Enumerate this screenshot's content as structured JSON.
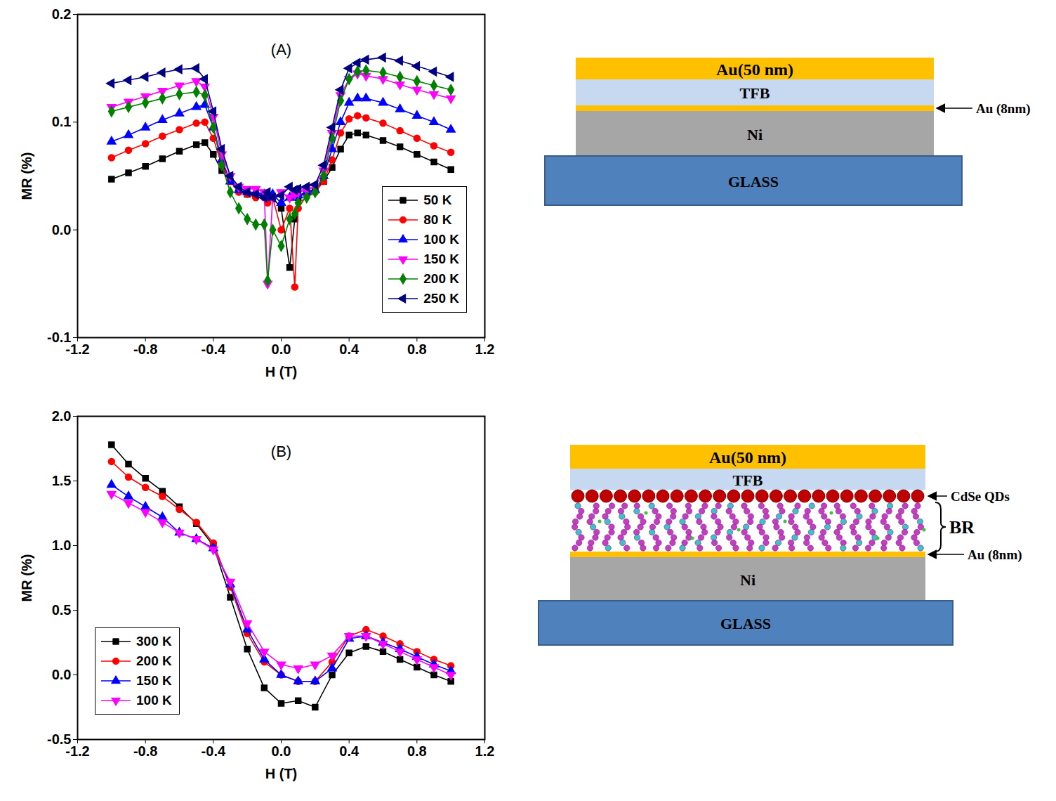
{
  "chart_data": [
    {
      "type": "line",
      "title": "(A)",
      "x_label": "H (T)",
      "y_label": "MR (%)",
      "xlim": [
        -1.2,
        1.2
      ],
      "xticks": [
        -1.2,
        -0.8,
        -0.4,
        {
          "value": 0,
          "label": "0.0"
        },
        0.4,
        0.8,
        1.2
      ],
      "ylim": [
        -0.1,
        0.2
      ],
      "yticks": [
        -0.1,
        {
          "value": 0,
          "label": "0.0"
        },
        0.1,
        0.2
      ],
      "grid": false,
      "legend": "lower right",
      "x": [
        -1,
        -0.9,
        -0.8,
        -0.7,
        -0.6,
        -0.5,
        -0.45,
        -0.4,
        -0.35,
        -0.3,
        -0.25,
        -0.2,
        -0.15,
        -0.1,
        -0.08,
        -0.05,
        0,
        0.05,
        0.08,
        0.1,
        0.15,
        0.2,
        0.25,
        0.3,
        0.35,
        0.4,
        0.45,
        0.5,
        0.6,
        0.7,
        0.8,
        0.9,
        1
      ],
      "series": [
        {
          "name": "50 K",
          "color": "#000000",
          "marker": "square",
          "values": [
            0.047,
            0.053,
            0.059,
            0.066,
            0.073,
            0.079,
            0.081,
            0.07,
            0.055,
            0.045,
            0.038,
            0.033,
            0.032,
            0.033,
            0.03,
            0.03,
            0.02,
            -0.035,
            0.01,
            0.03,
            0.035,
            0.038,
            0.045,
            0.058,
            0.075,
            0.088,
            0.09,
            0.088,
            0.083,
            0.077,
            0.07,
            0.063,
            0.056
          ]
        },
        {
          "name": "80 K",
          "color": "#ff0000",
          "marker": "circle",
          "values": [
            0.067,
            0.074,
            0.08,
            0.087,
            0.093,
            0.099,
            0.1,
            0.085,
            0.06,
            0.045,
            0.035,
            0.033,
            0.03,
            0.03,
            0.025,
            0.03,
            0.0,
            0.02,
            -0.053,
            0.02,
            0.032,
            0.035,
            0.045,
            0.065,
            0.09,
            0.103,
            0.106,
            0.104,
            0.099,
            0.092,
            0.085,
            0.078,
            0.072
          ]
        },
        {
          "name": "100 K",
          "color": "#0000ff",
          "marker": "triangle-up",
          "values": [
            0.082,
            0.088,
            0.095,
            0.102,
            0.108,
            0.114,
            0.116,
            0.095,
            0.065,
            0.045,
            0.037,
            0.035,
            0.035,
            0.033,
            0.03,
            0.033,
            0.025,
            0.03,
            0.03,
            0.032,
            0.035,
            0.037,
            0.05,
            0.075,
            0.1,
            0.118,
            0.122,
            0.122,
            0.118,
            0.112,
            0.106,
            0.1,
            0.093
          ]
        },
        {
          "name": "150 K",
          "color": "#ff00ff",
          "marker": "triangle-down",
          "values": [
            0.114,
            0.119,
            0.124,
            0.129,
            0.134,
            0.138,
            0.133,
            0.105,
            0.07,
            0.05,
            0.04,
            0.038,
            0.038,
            0.035,
            -0.05,
            0.03,
            0.035,
            0.03,
            0.033,
            0.035,
            0.037,
            0.04,
            0.055,
            0.09,
            0.125,
            0.14,
            0.145,
            0.143,
            0.14,
            0.135,
            0.13,
            0.126,
            0.122
          ]
        },
        {
          "name": "200 K",
          "color": "#008000",
          "marker": "diamond",
          "values": [
            0.11,
            0.114,
            0.118,
            0.122,
            0.126,
            0.128,
            0.125,
            0.095,
            0.06,
            0.035,
            0.02,
            0.01,
            0.005,
            0.005,
            -0.047,
            0.0,
            -0.015,
            0.01,
            0.015,
            0.025,
            0.03,
            0.035,
            0.05,
            0.085,
            0.12,
            0.14,
            0.147,
            0.148,
            0.146,
            0.142,
            0.138,
            0.134,
            0.13
          ]
        },
        {
          "name": "250 K",
          "color": "#000080",
          "marker": "triangle-left",
          "values": [
            0.136,
            0.139,
            0.142,
            0.146,
            0.149,
            0.15,
            0.14,
            0.11,
            0.075,
            0.05,
            0.04,
            0.035,
            0.033,
            0.03,
            0.035,
            0.03,
            0.032,
            0.04,
            0.037,
            0.038,
            0.04,
            0.042,
            0.06,
            0.095,
            0.13,
            0.15,
            0.155,
            0.158,
            0.16,
            0.157,
            0.152,
            0.147,
            0.142
          ]
        }
      ]
    },
    {
      "type": "line",
      "title": "(B)",
      "x_label": "H (T)",
      "y_label": "MR (%)",
      "xlim": [
        -1.2,
        1.2
      ],
      "xticks": [
        -1.2,
        -0.8,
        -0.4,
        {
          "value": 0,
          "label": "0.0"
        },
        0.4,
        0.8,
        1.2
      ],
      "ylim": [
        -0.5,
        2.0
      ],
      "yticks": [
        -0.5,
        {
          "value": 0,
          "label": "0.0"
        },
        0.5,
        {
          "value": 1,
          "label": "1.0"
        },
        1.5,
        {
          "value": 2,
          "label": "2.0"
        }
      ],
      "grid": false,
      "legend": "lower left",
      "x": [
        -1,
        -0.9,
        -0.8,
        -0.7,
        -0.6,
        -0.5,
        -0.4,
        -0.3,
        -0.2,
        -0.1,
        0,
        0.1,
        0.2,
        0.3,
        0.4,
        0.5,
        0.6,
        0.7,
        0.8,
        0.9,
        1
      ],
      "series": [
        {
          "name": "300 K",
          "color": "#000000",
          "marker": "square",
          "values": [
            1.78,
            1.63,
            1.52,
            1.42,
            1.3,
            1.17,
            1.0,
            0.6,
            0.2,
            -0.1,
            -0.22,
            -0.2,
            -0.25,
            0.0,
            0.17,
            0.22,
            0.18,
            0.12,
            0.06,
            0.0,
            -0.05
          ]
        },
        {
          "name": "200 K",
          "color": "#ff0000",
          "marker": "circle",
          "values": [
            1.65,
            1.53,
            1.45,
            1.38,
            1.28,
            1.18,
            1.02,
            0.68,
            0.32,
            0.1,
            0.0,
            -0.05,
            -0.05,
            0.1,
            0.3,
            0.35,
            0.3,
            0.24,
            0.18,
            0.12,
            0.07
          ]
        },
        {
          "name": "150 K",
          "color": "#0000ff",
          "marker": "triangle-up",
          "values": [
            1.47,
            1.38,
            1.3,
            1.22,
            1.1,
            1.05,
            0.98,
            0.7,
            0.35,
            0.12,
            0.0,
            -0.05,
            -0.05,
            0.05,
            0.28,
            0.3,
            0.25,
            0.2,
            0.14,
            0.08,
            0.03
          ]
        },
        {
          "name": "100 K",
          "color": "#ff00ff",
          "marker": "triangle-down",
          "values": [
            1.4,
            1.33,
            1.26,
            1.18,
            1.1,
            1.05,
            0.97,
            0.72,
            0.4,
            0.18,
            0.08,
            0.05,
            0.08,
            0.15,
            0.3,
            0.3,
            0.24,
            0.18,
            0.12,
            0.06,
            0.0
          ]
        }
      ]
    }
  ],
  "diagrams": [
    {
      "layers": [
        {
          "inside": "Au(50 nm)"
        },
        {
          "inside": "TFB"
        },
        {
          "beside": "Au (8nm)"
        },
        {
          "inside": "Ni"
        },
        {
          "inside": "GLASS"
        }
      ]
    },
    {
      "layers": [
        {
          "inside": "Au(50 nm)"
        },
        {
          "inside": "TFB"
        },
        {
          "beside": "CdSe QDs"
        },
        {
          "beside": "BR"
        },
        {
          "beside": "Au (8nm)"
        },
        {
          "inside": "Ni"
        },
        {
          "inside": "GLASS"
        }
      ]
    }
  ]
}
